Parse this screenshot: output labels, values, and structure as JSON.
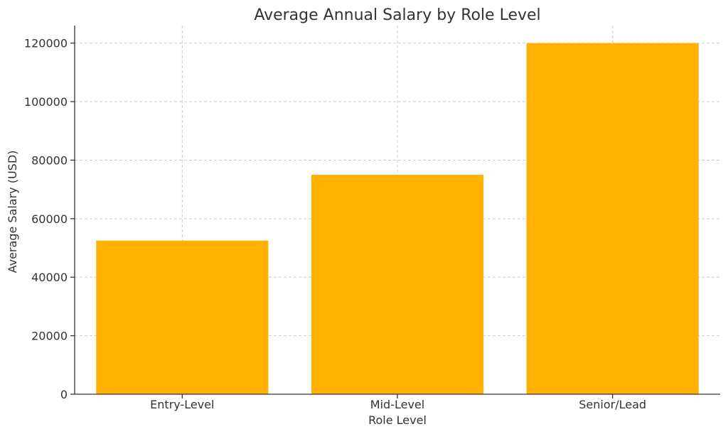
{
  "chart_data": {
    "type": "bar",
    "title": "Average Annual Salary by Role Level",
    "xlabel": "Role Level",
    "ylabel": "Average Salary (USD)",
    "categories": [
      "Entry-Level",
      "Mid-Level",
      "Senior/Lead"
    ],
    "values": [
      52500,
      75000,
      120000
    ],
    "ylim": [
      0,
      126000
    ],
    "yticks": [
      0,
      20000,
      40000,
      60000,
      80000,
      100000,
      120000
    ],
    "bar_color": "#FFB000",
    "grid": true,
    "legend": "none"
  }
}
